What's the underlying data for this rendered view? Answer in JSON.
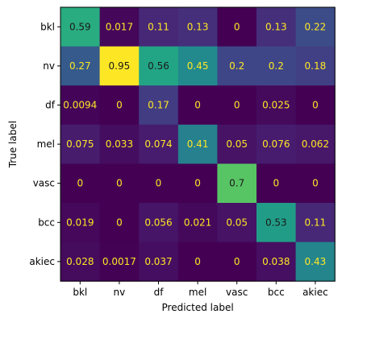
{
  "chart_data": {
    "type": "heatmap",
    "title": "",
    "xlabel": "Predicted label",
    "ylabel": "True label",
    "x_categories": [
      "bkl",
      "nv",
      "df",
      "mel",
      "vasc",
      "bcc",
      "akiec"
    ],
    "y_categories": [
      "bkl",
      "nv",
      "df",
      "mel",
      "vasc",
      "bcc",
      "akiec"
    ],
    "values": [
      [
        0.59,
        0.017,
        0.11,
        0.13,
        0,
        0.13,
        0.22
      ],
      [
        0.27,
        0.95,
        0.56,
        0.45,
        0.2,
        0.2,
        0.18
      ],
      [
        0.0094,
        0,
        0.17,
        0,
        0,
        0.025,
        0
      ],
      [
        0.075,
        0.033,
        0.074,
        0.41,
        0.05,
        0.076,
        0.062
      ],
      [
        0,
        0,
        0,
        0,
        0.7,
        0,
        0
      ],
      [
        0.019,
        0,
        0.056,
        0.021,
        0.05,
        0.53,
        0.11
      ],
      [
        0.028,
        0.0017,
        0.037,
        0,
        0,
        0.038,
        0.43
      ]
    ],
    "cell_labels": [
      [
        "0.59",
        "0.017",
        "0.11",
        "0.13",
        "0",
        "0.13",
        "0.22"
      ],
      [
        "0.27",
        "0.95",
        "0.56",
        "0.45",
        "0.2",
        "0.2",
        "0.18"
      ],
      [
        "0.0094",
        "0",
        "0.17",
        "0",
        "0",
        "0.025",
        "0"
      ],
      [
        "0.075",
        "0.033",
        "0.074",
        "0.41",
        "0.05",
        "0.076",
        "0.062"
      ],
      [
        "0",
        "0",
        "0",
        "0",
        "0.7",
        "0",
        "0"
      ],
      [
        "0.019",
        "0",
        "0.056",
        "0.021",
        "0.05",
        "0.53",
        "0.11"
      ],
      [
        "0.028",
        "0.0017",
        "0.037",
        "0",
        "0",
        "0.038",
        "0.43"
      ]
    ],
    "colormap": "viridis",
    "value_range": [
      0,
      0.95
    ],
    "colors": {
      "text_light": "#fde725",
      "text_dark": "#1a1a1a",
      "axis": "#000000"
    },
    "grid": false,
    "colorbar": false
  }
}
